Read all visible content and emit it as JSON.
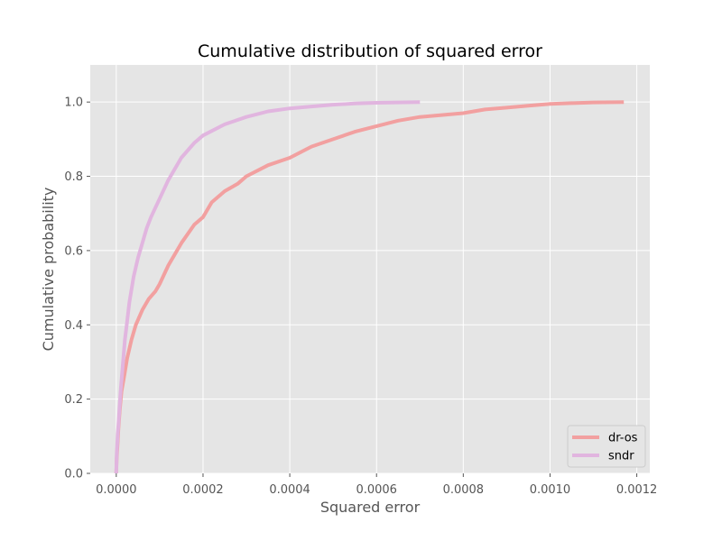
{
  "chart_data": {
    "type": "line",
    "title": "Cumulative distribution of squared error",
    "xlabel": "Squared error",
    "ylabel": "Cumulative probability",
    "xlim": [
      -6e-05,
      0.00123
    ],
    "ylim": [
      0.0,
      1.1
    ],
    "xticks": [
      0.0,
      0.0002,
      0.0004,
      0.0006,
      0.0008,
      0.001,
      0.0012
    ],
    "xtick_labels": [
      "0.0000",
      "0.0002",
      "0.0004",
      "0.0006",
      "0.0008",
      "0.0010",
      "0.0012"
    ],
    "yticks": [
      0.0,
      0.2,
      0.4,
      0.6,
      0.8,
      1.0
    ],
    "ytick_labels": [
      "0.0",
      "0.2",
      "0.4",
      "0.6",
      "0.8",
      "1.0"
    ],
    "grid": true,
    "legend_position": "bottom-right",
    "background_color": "#e5e5e5",
    "series": [
      {
        "name": "dr-os",
        "color": "#f2a0a0",
        "x": [
          0.0,
          1e-06,
          3e-06,
          5e-06,
          8e-06,
          1.2e-05,
          1.8e-05,
          2.5e-05,
          3.5e-05,
          4.5e-05,
          6e-05,
          7.5e-05,
          9e-05,
          0.0001,
          0.00012,
          0.00015,
          0.00018,
          0.0002,
          0.00022,
          0.00025,
          0.00028,
          0.0003,
          0.00035,
          0.0004,
          0.00045,
          0.0005,
          0.00055,
          0.0006,
          0.00065,
          0.0007,
          0.00075,
          0.0008,
          0.00085,
          0.0009,
          0.00095,
          0.001,
          0.00105,
          0.0011,
          0.00117
        ],
        "y": [
          0.0,
          0.04,
          0.08,
          0.12,
          0.17,
          0.22,
          0.26,
          0.31,
          0.36,
          0.4,
          0.44,
          0.47,
          0.49,
          0.51,
          0.56,
          0.62,
          0.67,
          0.69,
          0.73,
          0.76,
          0.78,
          0.8,
          0.83,
          0.85,
          0.88,
          0.9,
          0.92,
          0.935,
          0.95,
          0.96,
          0.965,
          0.97,
          0.98,
          0.985,
          0.99,
          0.995,
          0.997,
          0.999,
          1.0
        ]
      },
      {
        "name": "sndr",
        "color": "#e1b5df",
        "x": [
          0.0,
          1e-06,
          3e-06,
          6e-06,
          1e-05,
          1.5e-05,
          2e-05,
          2.5e-05,
          3e-05,
          4e-05,
          5e-05,
          6e-05,
          7e-05,
          8e-05,
          0.0001,
          0.00012,
          0.00015,
          0.00018,
          0.0002,
          0.00025,
          0.0003,
          0.00035,
          0.0004,
          0.00045,
          0.0005,
          0.00055,
          0.0006,
          0.00065,
          0.0007
        ],
        "y": [
          0.0,
          0.05,
          0.1,
          0.15,
          0.22,
          0.29,
          0.36,
          0.41,
          0.46,
          0.53,
          0.58,
          0.62,
          0.66,
          0.69,
          0.74,
          0.79,
          0.85,
          0.89,
          0.91,
          0.94,
          0.96,
          0.975,
          0.983,
          0.988,
          0.993,
          0.996,
          0.998,
          0.999,
          1.0
        ]
      }
    ]
  }
}
